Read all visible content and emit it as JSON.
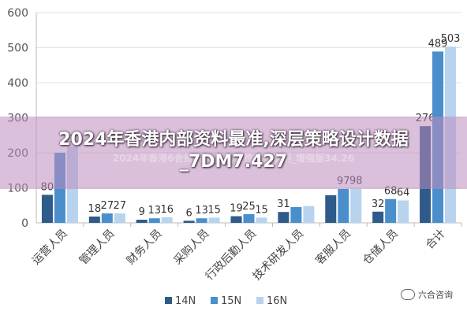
{
  "chart_data": {
    "type": "bar",
    "categories": [
      "运营人员",
      "管理人员",
      "财务人员",
      "采购人员",
      "行政后勤人员",
      "技术研发人员",
      "客服人员",
      "仓储人员",
      "合计"
    ],
    "series": [
      {
        "name": "14N",
        "color": "#2e5b8a",
        "values": [
          80,
          18,
          9,
          6,
          19,
          31,
          79,
          32,
          276
        ]
      },
      {
        "name": "15N",
        "color": "#4a8fcc",
        "values": [
          200,
          27,
          13,
          13,
          25,
          45,
          97,
          68,
          489
        ]
      },
      {
        "name": "16N",
        "color": "#b7d3ee",
        "values": [
          217,
          27,
          16,
          15,
          15,
          48,
          98,
          64,
          503
        ]
      }
    ],
    "data_labels": [
      [
        "80",
        "",
        "217"
      ],
      [
        "18",
        "27",
        "27"
      ],
      [
        "9",
        "13",
        "16"
      ],
      [
        "6",
        "13",
        "15"
      ],
      [
        "19",
        "25",
        "15"
      ],
      [
        "31",
        "",
        ""
      ],
      [
        "",
        "97",
        "98"
      ],
      [
        "32",
        "68",
        "64"
      ],
      [
        "276",
        "489",
        "503"
      ]
    ],
    "yticks": [
      "0",
      "100",
      "200",
      "300",
      "400",
      "500",
      "600"
    ],
    "ylim": [
      0,
      600
    ],
    "grid": true,
    "legend_position": "bottom"
  },
  "overlay": {
    "title": "2024年香港内部资料最准,深层策略设计数据_7DM7.427",
    "subtitle": "2024年香港6合资料大全查,定性解析说明_增强版34.26"
  },
  "watermark": {
    "text": "六合咨询",
    "icon": "wechat-icon"
  }
}
